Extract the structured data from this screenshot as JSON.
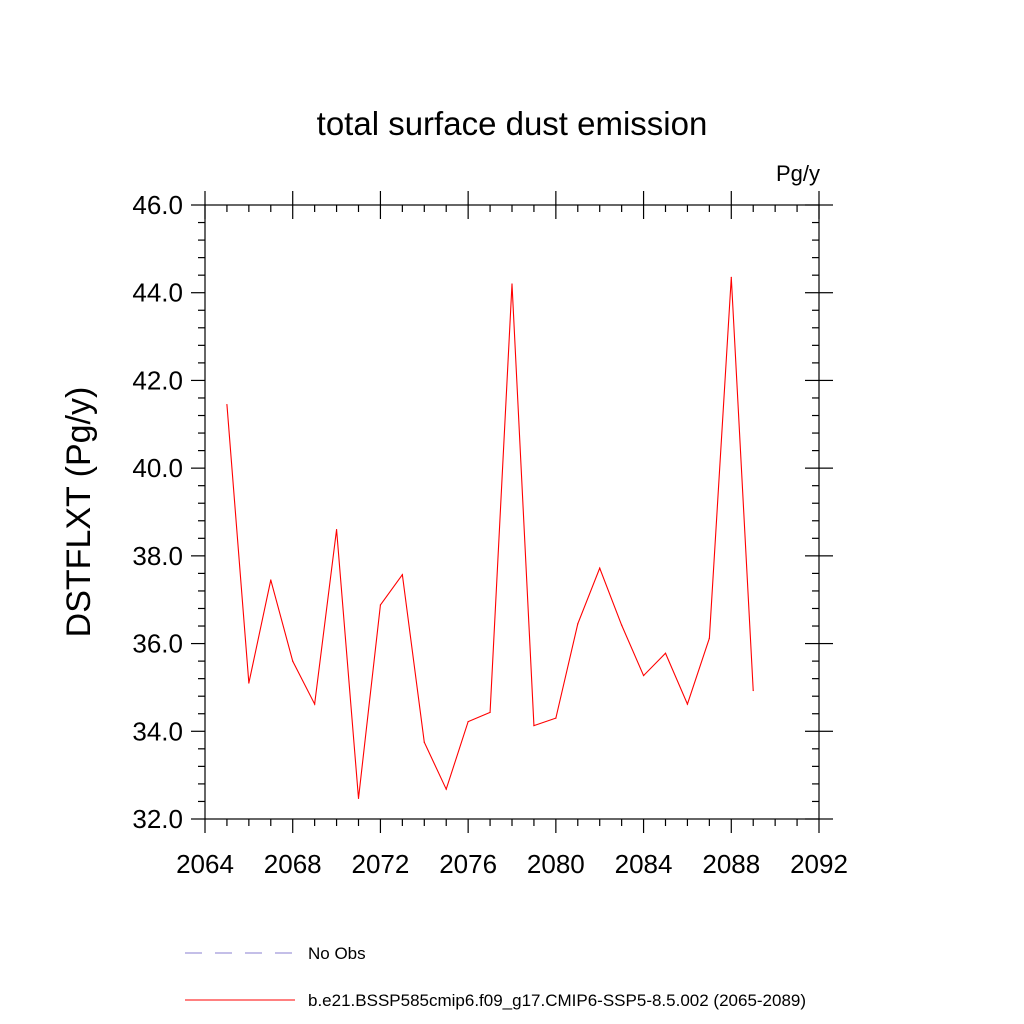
{
  "chart_data": {
    "type": "line",
    "title": "total surface dust emission",
    "units": "Pg/y",
    "ylabel": "DSTFLXT  (Pg/y)",
    "xlabel": "",
    "xlim": [
      2064,
      2092
    ],
    "ylim": [
      32.0,
      46.0
    ],
    "x_major_ticks": [
      2064,
      2068,
      2072,
      2076,
      2080,
      2084,
      2088,
      2092
    ],
    "x_tick_labels": [
      "2064",
      "2068",
      "2072",
      "2076",
      "2080",
      "2084",
      "2088",
      "2092"
    ],
    "y_major_ticks": [
      32,
      34,
      36,
      38,
      40,
      42,
      44,
      46
    ],
    "y_tick_labels": [
      "32.0",
      "34.0",
      "36.0",
      "38.0",
      "40.0",
      "42.0",
      "44.0",
      "46.0"
    ],
    "grid": false,
    "legend_position": "bottom",
    "series": [
      {
        "name": "b.e21.BSSP585cmip6.f09_g17.CMIP6-SSP5-8.5.002 (2065-2089)",
        "color": "#ff0000",
        "style": "solid",
        "x": [
          2065,
          2066,
          2067,
          2068,
          2069,
          2070,
          2071,
          2072,
          2073,
          2074,
          2075,
          2076,
          2077,
          2078,
          2079,
          2080,
          2081,
          2082,
          2083,
          2084,
          2085,
          2086,
          2087,
          2088,
          2089
        ],
        "y": [
          41.45,
          35.1,
          37.45,
          35.6,
          34.62,
          38.6,
          32.47,
          36.88,
          37.57,
          33.75,
          32.68,
          34.22,
          34.43,
          44.2,
          34.13,
          34.3,
          36.45,
          37.72,
          36.42,
          35.27,
          35.78,
          34.62,
          36.12,
          44.35,
          34.93
        ]
      },
      {
        "name": "No Obs",
        "color": "#8a7fd0",
        "style": "dashed",
        "x": [],
        "y": []
      }
    ]
  }
}
